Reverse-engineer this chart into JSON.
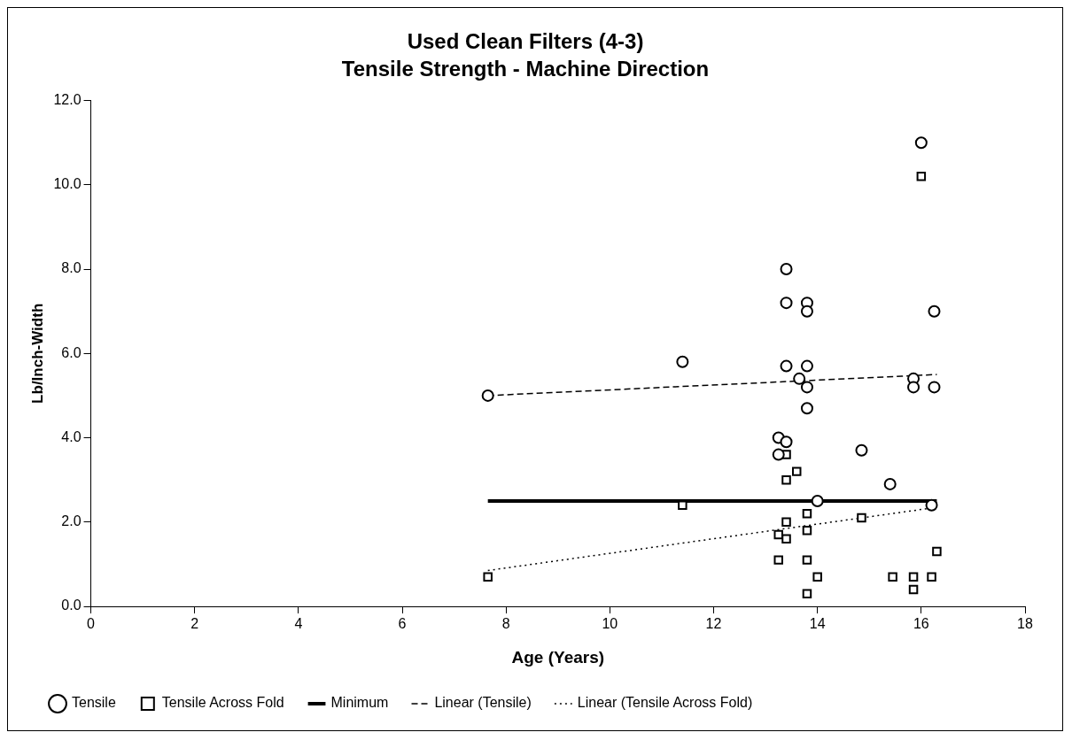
{
  "chart_data": {
    "type": "scatter",
    "title": "Used Clean Filters (4-3)",
    "subtitle": "Tensile Strength - Machine Direction",
    "xlabel": "Age (Years)",
    "ylabel": "Lb/Inch-Width",
    "xlim": [
      0,
      18
    ],
    "xticks": [
      0,
      2,
      4,
      6,
      8,
      10,
      12,
      14,
      16,
      18
    ],
    "ylim": [
      0,
      12
    ],
    "yticks": [
      {
        "value": 0,
        "label": "0.0"
      },
      {
        "value": 2,
        "label": "2.0"
      },
      {
        "value": 4,
        "label": "4.0"
      },
      {
        "value": 6,
        "label": "6.0"
      },
      {
        "value": 8,
        "label": "8.0"
      },
      {
        "value": 10,
        "label": "10.0"
      },
      {
        "value": 12,
        "label": "12.0"
      }
    ],
    "grid": false,
    "legend": "bottom",
    "series": [
      {
        "name": "Tensile",
        "type": "scatter",
        "marker": "circle",
        "color": "#000000",
        "x": [
          7.65,
          11.4,
          13.4,
          13.4,
          13.8,
          13.8,
          13.4,
          13.8,
          13.65,
          13.8,
          13.8,
          13.25,
          13.4,
          13.25,
          14.85,
          15.4,
          14.0,
          16.2,
          16.0,
          16.25,
          15.85,
          15.85,
          16.25
        ],
        "values": [
          5.0,
          5.8,
          8.0,
          7.2,
          7.2,
          7.0,
          5.7,
          5.7,
          5.4,
          5.2,
          4.7,
          4.0,
          3.9,
          3.6,
          3.7,
          2.9,
          2.5,
          2.4,
          11.0,
          7.0,
          5.4,
          5.2,
          5.2
        ]
      },
      {
        "name": "Tensile Across Fold",
        "type": "scatter",
        "marker": "square",
        "color": "#000000",
        "x": [
          7.65,
          11.4,
          16.0,
          13.4,
          13.6,
          13.4,
          13.8,
          13.4,
          13.8,
          13.25,
          13.4,
          14.85,
          13.25,
          13.8,
          14.0,
          13.8,
          15.45,
          15.85,
          15.85,
          16.2,
          16.3
        ],
        "values": [
          0.7,
          2.4,
          10.2,
          3.6,
          3.2,
          3.0,
          2.2,
          2.0,
          1.8,
          1.7,
          1.6,
          2.1,
          1.1,
          1.1,
          0.7,
          0.3,
          0.7,
          0.7,
          0.4,
          0.7,
          1.3
        ]
      },
      {
        "name": "Minimum",
        "type": "line",
        "line_style": "solid",
        "color": "#000000",
        "x": [
          7.65,
          16.3
        ],
        "values": [
          2.5,
          2.5
        ]
      },
      {
        "name": "Linear (Tensile)",
        "type": "line",
        "line_style": "dashed",
        "color": "#000000",
        "x": [
          7.65,
          16.3
        ],
        "values": [
          5.0,
          5.5
        ]
      },
      {
        "name": "Linear (Tensile Across Fold)",
        "type": "line",
        "line_style": "dotted",
        "color": "#000000",
        "x": [
          7.65,
          16.3
        ],
        "values": [
          0.85,
          2.35
        ]
      }
    ]
  }
}
